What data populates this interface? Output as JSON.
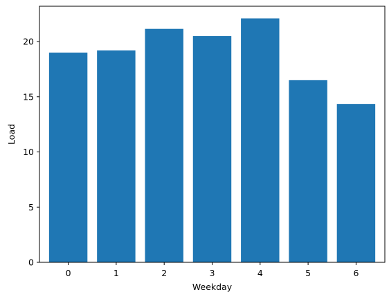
{
  "chart_data": {
    "type": "bar",
    "categories": [
      "0",
      "1",
      "2",
      "3",
      "4",
      "5",
      "6"
    ],
    "values": [
      19.0,
      19.2,
      21.15,
      20.5,
      22.1,
      16.5,
      14.35
    ],
    "title": "",
    "xlabel": "Weekday",
    "ylabel": "Load",
    "ylim": [
      0,
      23.2
    ],
    "yticks": [
      0,
      5,
      10,
      15,
      20
    ],
    "grid": false,
    "bar_color": "#1f77b4"
  }
}
